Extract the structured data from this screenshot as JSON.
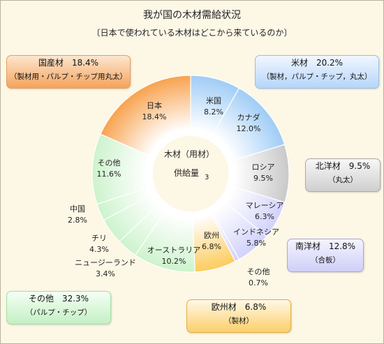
{
  "title": "我が国の木材需給状況",
  "subtitle": "〔日本で使われている木材はどこから来ているのか〕",
  "center_label": {
    "line1": "木材（用材）",
    "line2": "供給量",
    "superscript": "3"
  },
  "callouts": {
    "domestic": {
      "line1": "国産材　18.4%",
      "line2": "（製材用・パルプ・チップ用丸太）"
    },
    "us": {
      "line1": "米材　20.2%",
      "line2": "（製材，パルプ・チップ，丸太）"
    },
    "north": {
      "line1": "北洋材　9.5%",
      "line2": "（丸太）"
    },
    "south": {
      "line1": "南洋材　12.8%",
      "line2": "（合板）"
    },
    "europe": {
      "line1": "欧州材　6.8%",
      "line2": "（製材）"
    },
    "other": {
      "line1": "その他　32.3%",
      "line2": "（パルプ・チップ）"
    }
  },
  "colors": {
    "domestic": "#f8a24e",
    "us": "#9fccf6",
    "north": "#c9c9c9",
    "south": "#d2d2fb",
    "europe": "#fccc5e",
    "other": "#cdf3cd"
  },
  "chart_data": {
    "type": "pie",
    "variant": "donut",
    "unit": "%",
    "slices": [
      {
        "label": "米国",
        "value": 8.2,
        "group": "us"
      },
      {
        "label": "カナダ",
        "value": 12.0,
        "group": "us"
      },
      {
        "label": "ロシア",
        "value": 9.5,
        "group": "north"
      },
      {
        "label": "マレーシア",
        "value": 6.3,
        "group": "south"
      },
      {
        "label": "インドネシア",
        "value": 5.8,
        "group": "south"
      },
      {
        "label": "その他",
        "value": 0.7,
        "group": "south"
      },
      {
        "label": "欧州",
        "value": 6.8,
        "group": "europe"
      },
      {
        "label": "オーストラリア",
        "value": 10.2,
        "group": "other"
      },
      {
        "label": "ニュージーランド",
        "value": 3.4,
        "group": "other"
      },
      {
        "label": "チリ",
        "value": 4.3,
        "group": "other"
      },
      {
        "label": "中国",
        "value": 2.8,
        "group": "other"
      },
      {
        "label": "その他",
        "value": 11.6,
        "group": "other"
      },
      {
        "label": "日本",
        "value": 18.4,
        "group": "domestic"
      }
    ]
  }
}
